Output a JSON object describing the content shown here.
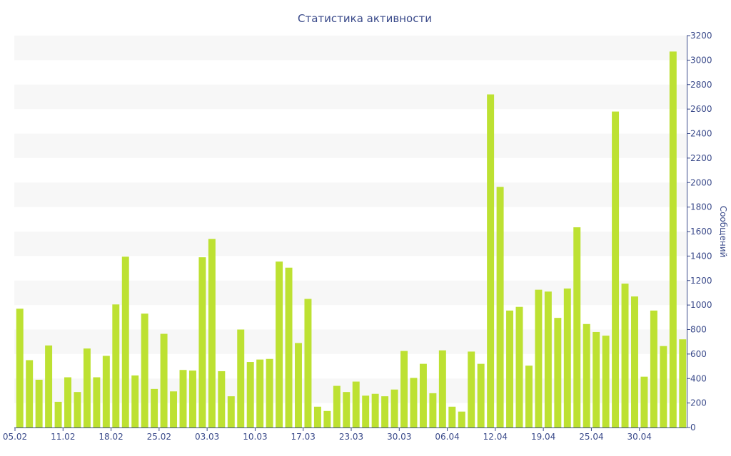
{
  "chart_data": {
    "type": "bar",
    "title": "Статистика активности",
    "xlabel": "",
    "ylabel": "Сообщений",
    "ylim": [
      0,
      3200
    ],
    "y_ticks": [
      0,
      200,
      400,
      600,
      800,
      1000,
      1200,
      1400,
      1600,
      1800,
      2000,
      2200,
      2400,
      2600,
      2800,
      3000,
      3200
    ],
    "y_axis_side": "right",
    "grid": "alternating horizontal bands",
    "x_tick_labels": [
      {
        "label": "05.02",
        "index": 0
      },
      {
        "label": "11.02",
        "index": 5
      },
      {
        "label": "18.02",
        "index": 10
      },
      {
        "label": "25.02",
        "index": 15
      },
      {
        "label": "03.03",
        "index": 20
      },
      {
        "label": "10.03",
        "index": 25
      },
      {
        "label": "17.03",
        "index": 30
      },
      {
        "label": "23.03",
        "index": 35
      },
      {
        "label": "30.03",
        "index": 40
      },
      {
        "label": "06.04",
        "index": 45
      },
      {
        "label": "12.04",
        "index": 50
      },
      {
        "label": "19.04",
        "index": 55
      },
      {
        "label": "25.04",
        "index": 60
      },
      {
        "label": "30.04",
        "index": 65
      }
    ],
    "values": [
      970,
      550,
      390,
      670,
      210,
      410,
      290,
      645,
      410,
      585,
      1005,
      1395,
      425,
      930,
      315,
      765,
      295,
      470,
      465,
      1390,
      1540,
      460,
      255,
      800,
      535,
      555,
      560,
      1355,
      1305,
      690,
      1050,
      170,
      135,
      340,
      290,
      375,
      260,
      275,
      255,
      310,
      625,
      405,
      520,
      280,
      630,
      170,
      130,
      620,
      520,
      2720,
      1965,
      955,
      985,
      505,
      1125,
      1110,
      895,
      1135,
      1635,
      845,
      780,
      750,
      2580,
      1175,
      1070,
      415,
      955,
      665,
      3070,
      720
    ],
    "bar_color": "#bde132",
    "band_color": "#f7f7f7"
  }
}
